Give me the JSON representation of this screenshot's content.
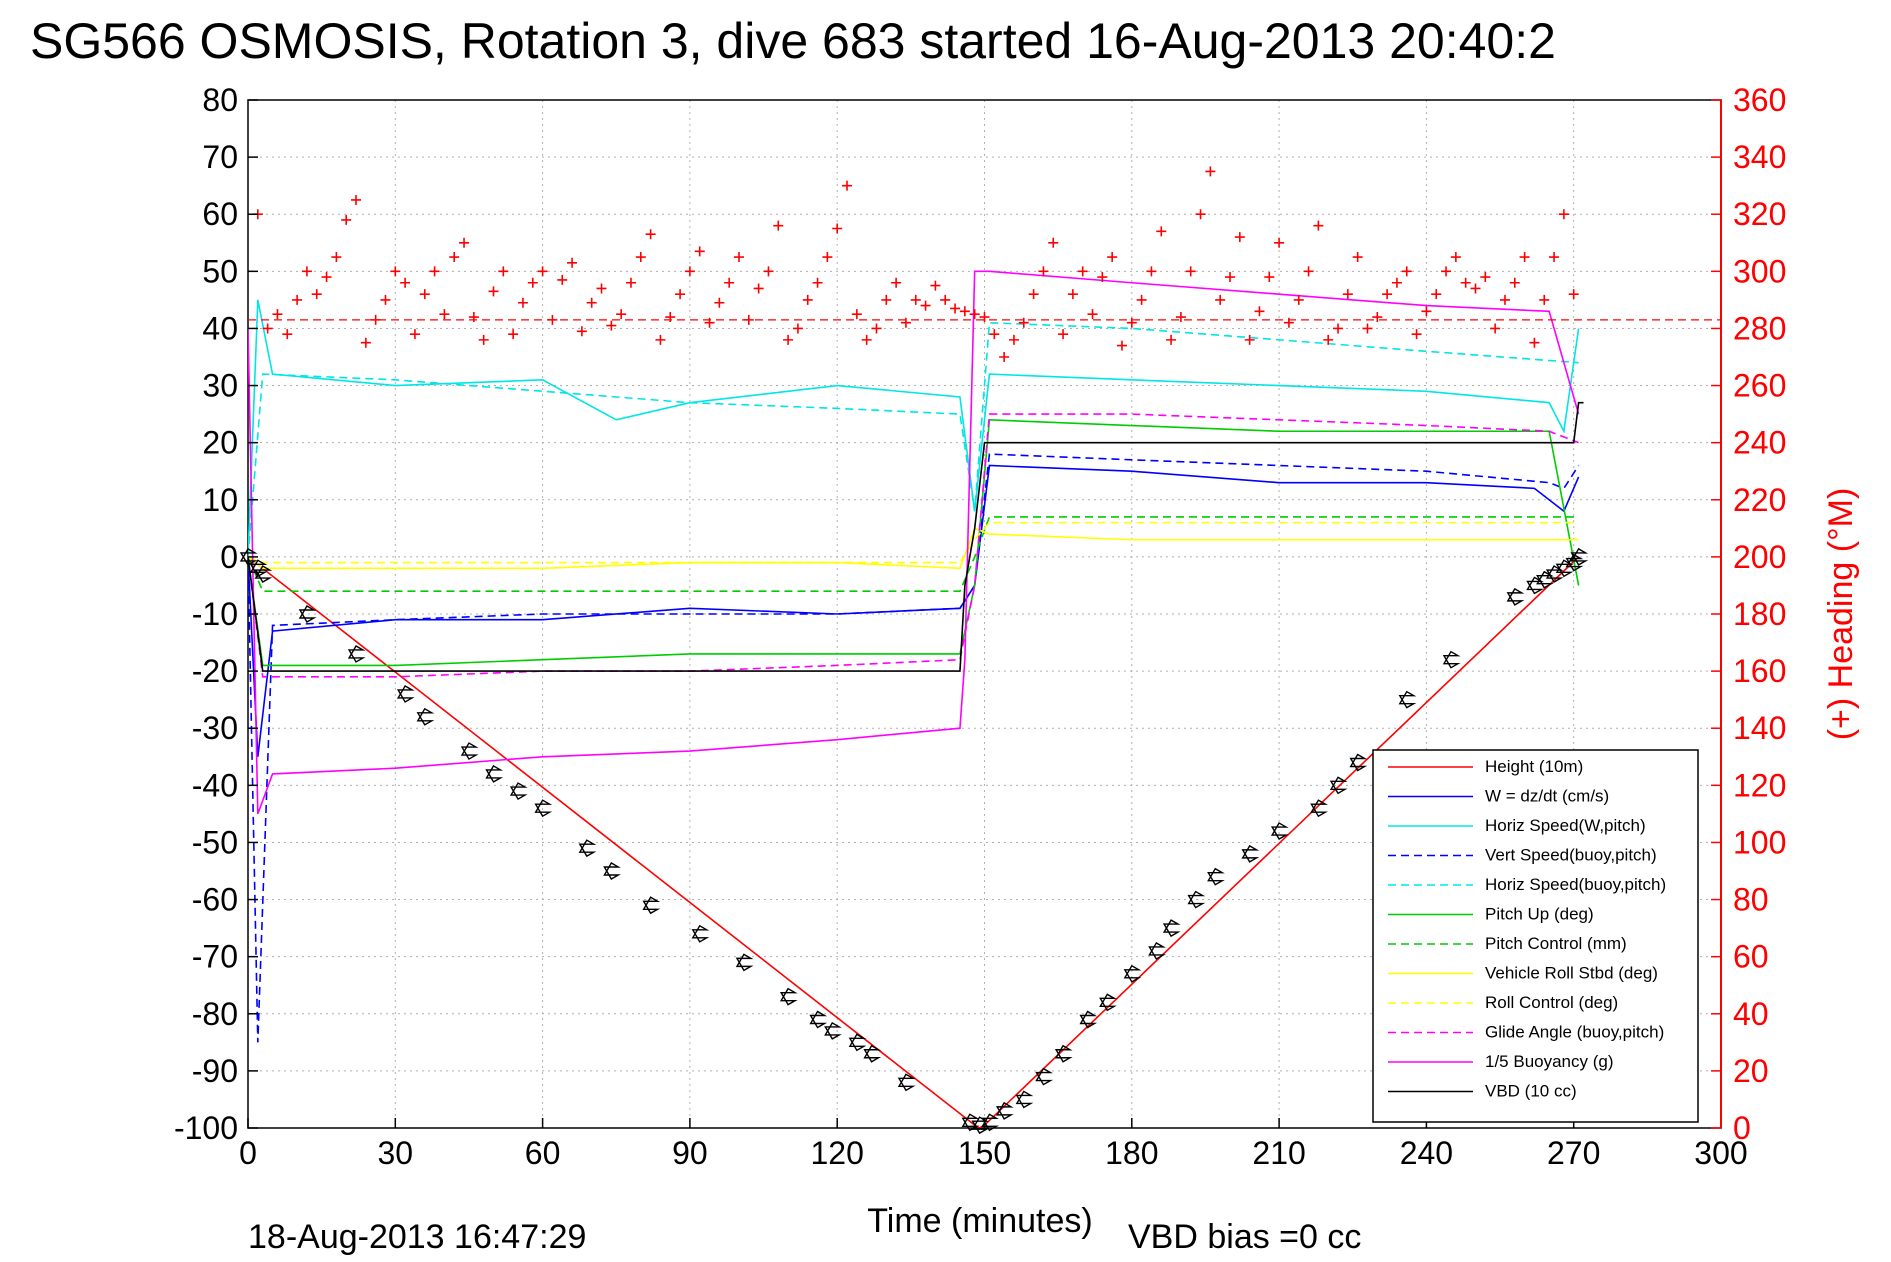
{
  "chart_data": {
    "type": "line",
    "title": "SG566 OSMOSIS, Rotation 3, dive 683 started 16-Aug-2013 20:40:2",
    "xlabel": "Time (minutes)",
    "ylabel_right": "(+) Heading (°M)",
    "xlim": [
      0,
      300
    ],
    "ylim": [
      -100,
      80
    ],
    "ylim_right": [
      0,
      360
    ],
    "x_ticks": [
      0,
      30,
      60,
      90,
      120,
      150,
      180,
      210,
      240,
      270,
      300
    ],
    "y_ticks": [
      80,
      70,
      60,
      50,
      40,
      30,
      20,
      10,
      0,
      -10,
      -20,
      -30,
      -40,
      -50,
      -60,
      -70,
      -80,
      -90,
      -100
    ],
    "y_ticks_right": [
      360,
      340,
      320,
      300,
      280,
      260,
      240,
      220,
      200,
      180,
      160,
      140,
      120,
      100,
      80,
      60,
      40,
      20,
      0
    ],
    "grid": true,
    "legend_position": "bottom-right",
    "footer_left": "18-Aug-2013 16:47:29",
    "footer_right": "VBD bias =0 cc",
    "series": [
      {
        "name": "Height (10m)",
        "color": "#ff0000",
        "style": "solid",
        "x": [
          0,
          148,
          149,
          150,
          271
        ],
        "y": [
          0,
          -99.5,
          -100,
          -99.5,
          0
        ]
      },
      {
        "name": "W = dz/dt (cm/s)",
        "color": "#0000ff",
        "style": "solid",
        "x": [
          0,
          2,
          5,
          30,
          60,
          90,
          120,
          145,
          148,
          151,
          180,
          210,
          240,
          262,
          268,
          271
        ],
        "y": [
          0,
          -35,
          -13,
          -11,
          -11,
          -9,
          -10,
          -9,
          -5,
          16,
          15,
          13,
          13,
          12,
          8,
          14
        ]
      },
      {
        "name": "Horiz Speed(W,pitch)",
        "color": "#00e5e5",
        "style": "solid",
        "x": [
          0,
          2,
          5,
          30,
          60,
          75,
          90,
          120,
          145,
          148,
          151,
          180,
          210,
          240,
          265,
          268,
          271
        ],
        "y": [
          0,
          45,
          32,
          30,
          31,
          24,
          27,
          30,
          28,
          8,
          32,
          31,
          30,
          29,
          27,
          22,
          40
        ]
      },
      {
        "name": "Vert Speed(buoy,pitch)",
        "color": "#0000ff",
        "style": "dashed",
        "x": [
          0,
          2,
          5,
          30,
          60,
          90,
          120,
          145,
          148,
          151,
          180,
          210,
          240,
          265,
          268,
          271
        ],
        "y": [
          0,
          -85,
          -12,
          -11,
          -10,
          -10,
          -10,
          -9,
          -5,
          18,
          17,
          16,
          15,
          13,
          12,
          16
        ]
      },
      {
        "name": "Horiz Speed(buoy,pitch)",
        "color": "#00e5e5",
        "style": "dashed",
        "x": [
          0,
          3,
          30,
          60,
          90,
          120,
          145,
          148,
          151,
          180,
          210,
          240,
          271
        ],
        "y": [
          0,
          32,
          31,
          29,
          27,
          26,
          25,
          8,
          41,
          40,
          38,
          36,
          34
        ]
      },
      {
        "name": "Pitch Up (deg)",
        "color": "#00cc00",
        "style": "solid",
        "x": [
          0,
          3,
          30,
          60,
          90,
          120,
          145,
          148,
          151,
          180,
          210,
          240,
          265,
          271
        ],
        "y": [
          0,
          -19,
          -19,
          -18,
          -17,
          -17,
          -17,
          -5,
          24,
          23,
          22,
          22,
          22,
          -5
        ]
      },
      {
        "name": "Pitch Control (mm)",
        "color": "#00cc00",
        "style": "dashed",
        "x": [
          0,
          3,
          145,
          148,
          151,
          271
        ],
        "y": [
          0,
          -6,
          -6,
          0,
          7,
          7
        ]
      },
      {
        "name": "Vehicle Roll Stbd (deg)",
        "color": "#ffff00",
        "style": "solid",
        "x": [
          0,
          3,
          30,
          60,
          90,
          120,
          145,
          148,
          151,
          180,
          210,
          240,
          265,
          271
        ],
        "y": [
          0,
          -2,
          -2,
          -2,
          -1,
          -1,
          -2,
          5,
          4,
          3,
          3,
          3,
          3,
          3
        ]
      },
      {
        "name": "Roll Control (deg)",
        "color": "#ffff00",
        "style": "dashed",
        "x": [
          0,
          3,
          145,
          148,
          151,
          271
        ],
        "y": [
          0,
          -1,
          -1,
          3,
          6,
          6
        ]
      },
      {
        "name": "Glide Angle (buoy,pitch)",
        "color": "#ff00ff",
        "style": "dashed",
        "x": [
          0,
          3,
          30,
          60,
          90,
          120,
          145,
          148,
          151,
          180,
          210,
          240,
          265,
          271
        ],
        "y": [
          0,
          -21,
          -21,
          -20,
          -20,
          -19,
          -18,
          -5,
          25,
          25,
          24,
          23,
          22,
          20
        ]
      },
      {
        "name": "1/5 Buoyancy (g)",
        "color": "#ff00ff",
        "style": "solid",
        "x": [
          0,
          2,
          5,
          30,
          60,
          90,
          120,
          145,
          146,
          148,
          151,
          180,
          210,
          240,
          265,
          271
        ],
        "y": [
          40,
          -45,
          -38,
          -37,
          -35,
          -34,
          -32,
          -30,
          -18,
          50,
          50,
          48,
          46,
          44,
          43,
          25
        ]
      },
      {
        "name": "VBD (10 cc)",
        "color": "#000000",
        "style": "solid",
        "x": [
          0,
          3,
          30,
          145,
          146,
          148,
          150,
          270,
          271,
          272
        ],
        "y": [
          0,
          -20,
          -20,
          -20,
          -5,
          5,
          20,
          20,
          27,
          27
        ]
      }
    ],
    "heading_points": {
      "color": "#ff0000",
      "marker": "+",
      "mean": 283,
      "x": [
        2,
        4,
        6,
        8,
        10,
        12,
        14,
        16,
        18,
        20,
        22,
        24,
        26,
        28,
        30,
        32,
        34,
        36,
        38,
        40,
        42,
        44,
        46,
        48,
        50,
        52,
        54,
        56,
        58,
        60,
        62,
        64,
        66,
        68,
        70,
        72,
        74,
        76,
        78,
        80,
        82,
        84,
        86,
        88,
        90,
        92,
        94,
        96,
        98,
        100,
        102,
        104,
        106,
        108,
        110,
        112,
        114,
        116,
        118,
        120,
        122,
        124,
        126,
        128,
        130,
        132,
        134,
        136,
        138,
        140,
        142,
        144,
        146,
        148,
        150,
        152,
        154,
        156,
        158,
        160,
        162,
        164,
        166,
        168,
        170,
        172,
        174,
        176,
        178,
        180,
        182,
        184,
        186,
        188,
        190,
        192,
        194,
        196,
        198,
        200,
        202,
        204,
        206,
        208,
        210,
        212,
        214,
        216,
        218,
        220,
        222,
        224,
        226,
        228,
        230,
        232,
        234,
        236,
        238,
        240,
        242,
        244,
        246,
        248,
        250,
        252,
        254,
        256,
        258,
        260,
        262,
        264,
        266,
        268,
        270
      ],
      "y": [
        320,
        280,
        285,
        278,
        290,
        300,
        292,
        298,
        305,
        318,
        325,
        275,
        283,
        290,
        300,
        296,
        278,
        292,
        300,
        285,
        305,
        310,
        284,
        276,
        293,
        300,
        278,
        289,
        296,
        300,
        283,
        297,
        303,
        279,
        289,
        294,
        281,
        285,
        296,
        305,
        313,
        276,
        284,
        292,
        300,
        307,
        282,
        289,
        296,
        305,
        283,
        294,
        300,
        316,
        276,
        280,
        290,
        296,
        305,
        315,
        330,
        285,
        276,
        280,
        290,
        296,
        282,
        290,
        288,
        295,
        290,
        287,
        286,
        285,
        284,
        278,
        270,
        276,
        282,
        292,
        300,
        310,
        278,
        292,
        300,
        285,
        298,
        305,
        274,
        282,
        290,
        300,
        314,
        276,
        284,
        300,
        320,
        335,
        290,
        298,
        312,
        276,
        286,
        298,
        310,
        282,
        290,
        300,
        316,
        276,
        280,
        292,
        305,
        280,
        284,
        292,
        296,
        300,
        278,
        286,
        292,
        300,
        305,
        296,
        294,
        298,
        280,
        290,
        296,
        305,
        275,
        290,
        305,
        320,
        292
      ]
    },
    "waypoints": {
      "color": "#000000",
      "marker": "hexagram",
      "x": [
        0,
        2,
        3,
        12,
        22,
        32,
        36,
        45,
        50,
        55,
        60,
        69,
        74,
        82,
        92,
        101,
        110,
        116,
        119,
        124,
        127,
        134,
        147,
        149,
        151,
        154,
        158,
        162,
        166,
        171,
        175,
        180,
        185,
        188,
        193,
        197,
        204,
        210,
        218,
        222,
        226,
        236,
        245,
        258,
        262,
        264,
        266,
        268,
        270,
        271
      ],
      "y": [
        0,
        -2,
        -3,
        -10,
        -17,
        -24,
        -28,
        -34,
        -38,
        -41,
        -44,
        -51,
        -55,
        -61,
        -66,
        -71,
        -77,
        -81,
        -83,
        -85,
        -87,
        -92,
        -99,
        -99.5,
        -99,
        -97,
        -95,
        -91,
        -87,
        -81,
        -78,
        -73,
        -69,
        -65,
        -60,
        -56,
        -52,
        -48,
        -44,
        -40,
        -36,
        -25,
        -18,
        -7,
        -5,
        -4,
        -3,
        -2,
        -1,
        0
      ]
    }
  }
}
